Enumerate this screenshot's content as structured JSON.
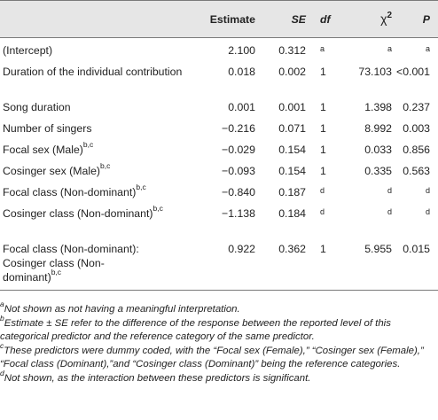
{
  "header": {
    "predictor": "",
    "estimate": "Estimate",
    "se": "SE",
    "df": "df",
    "chi": "χ",
    "chi_sup": "2",
    "p": "P"
  },
  "rows": [
    {
      "pred": "(Intercept)",
      "pred_sup": "",
      "est": "2.100",
      "se": "0.312",
      "df": "a",
      "chi": "a",
      "p": "a"
    },
    {
      "pred": "Duration of the individual contribution",
      "pred_sup": "",
      "est": "0.018",
      "se": "0.002",
      "df": "1",
      "chi": "73.103",
      "p": "<0.001"
    },
    {
      "pred": "Song duration",
      "pred_sup": "",
      "est": "0.001",
      "se": "0.001",
      "df": "1",
      "chi": "1.398",
      "p": "0.237"
    },
    {
      "pred": "Number of singers",
      "pred_sup": "",
      "est": "−0.216",
      "se": "0.071",
      "df": "1",
      "chi": "8.992",
      "p": "0.003"
    },
    {
      "pred": "Focal sex (Male)",
      "pred_sup": "b,c",
      "est": "−0.029",
      "se": "0.154",
      "df": "1",
      "chi": "0.033",
      "p": "0.856"
    },
    {
      "pred": "Cosinger sex (Male)",
      "pred_sup": "b,c",
      "est": "−0.093",
      "se": "0.154",
      "df": "1",
      "chi": "0.335",
      "p": "0.563"
    },
    {
      "pred": "Focal class (Non-dominant)",
      "pred_sup": "b,c",
      "est": "−0.840",
      "se": "0.187",
      "df": "d",
      "chi": "d",
      "p": "d"
    },
    {
      "pred": "Cosinger class (Non-dominant)",
      "pred_sup": "b,c",
      "est": "−1.138",
      "se": "0.184",
      "df": "d",
      "chi": "d",
      "p": "d"
    },
    {
      "pred": "Focal class (Non-dominant): Cosinger class (Non-dominant)",
      "pred_sup": "b,c",
      "est": "0.922",
      "se": "0.362",
      "df": "1",
      "chi": "5.955",
      "p": "0.015"
    }
  ],
  "notes": [
    {
      "sup": "a",
      "text": "Not shown as not having a meaningful interpretation."
    },
    {
      "sup": "b",
      "text": "Estimate ± SE refer to the difference of the response between the reported level of this categorical predictor and the reference category of the same predictor."
    },
    {
      "sup": "c",
      "text": "These predictors were dummy coded, with the “Focal sex (Female),” “Cosinger sex (Female),” “Focal class (Dominant),”and “Cosinger class (Dominant)” being the reference categories."
    },
    {
      "sup": "d",
      "text": "Not shown, as the interaction between these predictors is significant."
    }
  ]
}
